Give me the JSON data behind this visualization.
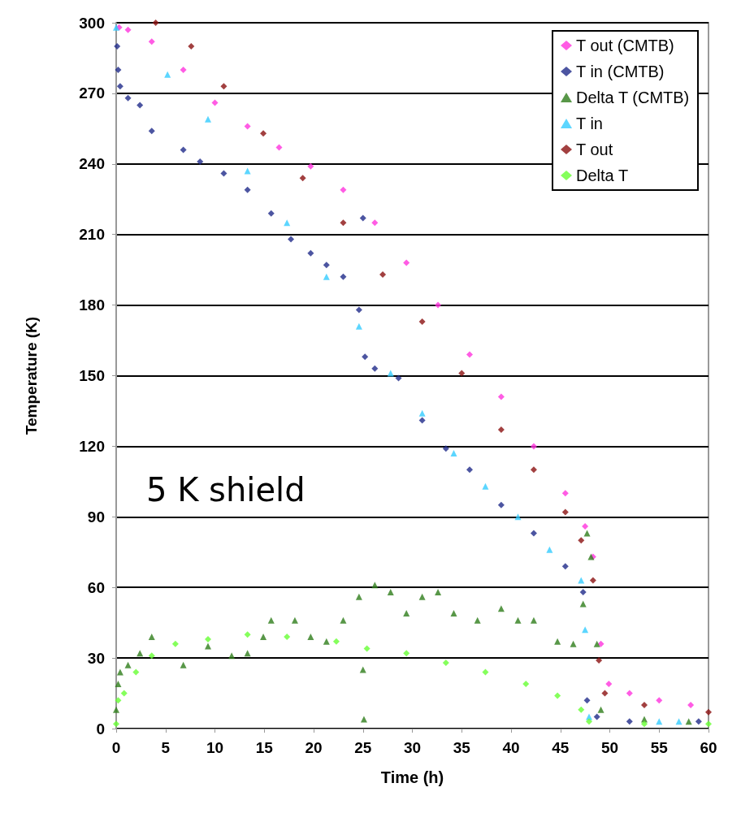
{
  "chart_data": {
    "type": "scatter",
    "xlabel": "Time (h)",
    "ylabel": "Temperature (K)",
    "xlim": [
      0,
      60
    ],
    "xticks": [
      0,
      5,
      10,
      15,
      20,
      25,
      30,
      35,
      40,
      45,
      50,
      55,
      60
    ],
    "ylim": [
      0,
      300
    ],
    "yticks": [
      0,
      30,
      60,
      90,
      120,
      150,
      180,
      210,
      240,
      270,
      300
    ],
    "grid": "y",
    "legend": "top right",
    "annotations": [
      "5 K shield"
    ],
    "series": [
      {
        "name": "T out (CMTB)",
        "color": "#ff33dd",
        "marker": "diamond",
        "x": [
          0.3,
          1.2,
          3.6,
          6.8,
          10,
          13.3,
          16.5,
          19.7,
          23,
          26.2,
          29.4,
          32.6,
          35.8,
          39,
          42.3,
          45.5,
          47.5,
          48.3,
          49.1,
          49.9,
          52,
          55,
          58.2
        ],
        "values": [
          298,
          297,
          292,
          280,
          266,
          256,
          247,
          239,
          229,
          215,
          198,
          180,
          159,
          141,
          120,
          100,
          86,
          73,
          36,
          19,
          15,
          12,
          10
        ]
      },
      {
        "name": "T in (CMTB)",
        "color": "#1f2a8a",
        "marker": "diamond",
        "x": [
          0.1,
          0.2,
          0.4,
          1.2,
          2.4,
          3.6,
          6.8,
          8.5,
          10.9,
          13.3,
          15.7,
          17.7,
          19.7,
          21.3,
          23,
          24.6,
          25,
          25.2,
          26.2,
          28.6,
          31,
          33.4,
          35.8,
          39,
          42.3,
          45.5,
          47.3,
          47.7,
          48.7,
          52,
          59
        ],
        "values": [
          290,
          280,
          273,
          268,
          265,
          254,
          246,
          241,
          236,
          229,
          219,
          208,
          202,
          197,
          192,
          178,
          217,
          158,
          153,
          149,
          131,
          119,
          110,
          95,
          83,
          69,
          58,
          12,
          5,
          3,
          3
        ]
      },
      {
        "name": "Delta T (CMTB)",
        "color": "#2e7d1a",
        "marker": "triangle",
        "x": [
          0,
          0.2,
          0.4,
          1.2,
          2.4,
          3.6,
          6.8,
          9.3,
          11.7,
          13.3,
          14.9,
          15.7,
          18.1,
          19.7,
          21.3,
          23,
          24.6,
          25,
          25.1,
          26.2,
          27.8,
          29.4,
          31,
          32.6,
          34.2,
          36.6,
          39,
          40.7,
          42.3,
          44.7,
          46.3,
          47.3,
          47.7,
          48.1,
          48.7,
          49.1,
          53.5,
          58
        ],
        "values": [
          8,
          19,
          24,
          27,
          32,
          39,
          27,
          35,
          31,
          32,
          39,
          46,
          46,
          39,
          37,
          46,
          56,
          25,
          4,
          61,
          58,
          49,
          56,
          58,
          49,
          46,
          51,
          46,
          46,
          37,
          36,
          53,
          83,
          73,
          36,
          8,
          4,
          3
        ]
      },
      {
        "name": "T in",
        "color": "#33ccff",
        "marker": "triangle",
        "x": [
          0,
          5.2,
          9.3,
          13.3,
          17.3,
          21.3,
          24.6,
          27.8,
          31,
          34.2,
          37.4,
          40.7,
          43.9,
          47.1,
          47.5,
          47.9,
          55,
          57
        ],
        "values": [
          298,
          278,
          259,
          237,
          215,
          192,
          171,
          151,
          134,
          117,
          103,
          90,
          76,
          63,
          42,
          5,
          3,
          3
        ]
      },
      {
        "name": "T out",
        "color": "#8b1010",
        "marker": "diamond",
        "x": [
          4,
          7.6,
          10.9,
          14.9,
          18.9,
          23,
          27,
          31,
          35,
          39,
          42.3,
          45.5,
          47.1,
          48.3,
          48.9,
          49.5,
          53.5,
          60
        ],
        "values": [
          300,
          290,
          273,
          253,
          234,
          215,
          193,
          173,
          151,
          127,
          110,
          92,
          80,
          63,
          29,
          15,
          10,
          7
        ]
      },
      {
        "name": "Delta T",
        "color": "#66ff33",
        "marker": "diamond",
        "x": [
          0,
          0.2,
          0.8,
          2,
          3.6,
          6,
          9.3,
          13.3,
          17.3,
          22.3,
          25.4,
          29.4,
          33.4,
          37.4,
          41.5,
          44.7,
          47.1,
          47.9,
          53.5,
          60
        ],
        "values": [
          2,
          12,
          15,
          24,
          31,
          36,
          38,
          40,
          39,
          37,
          34,
          32,
          28,
          24,
          19,
          14,
          8,
          3,
          2,
          2
        ]
      }
    ]
  }
}
